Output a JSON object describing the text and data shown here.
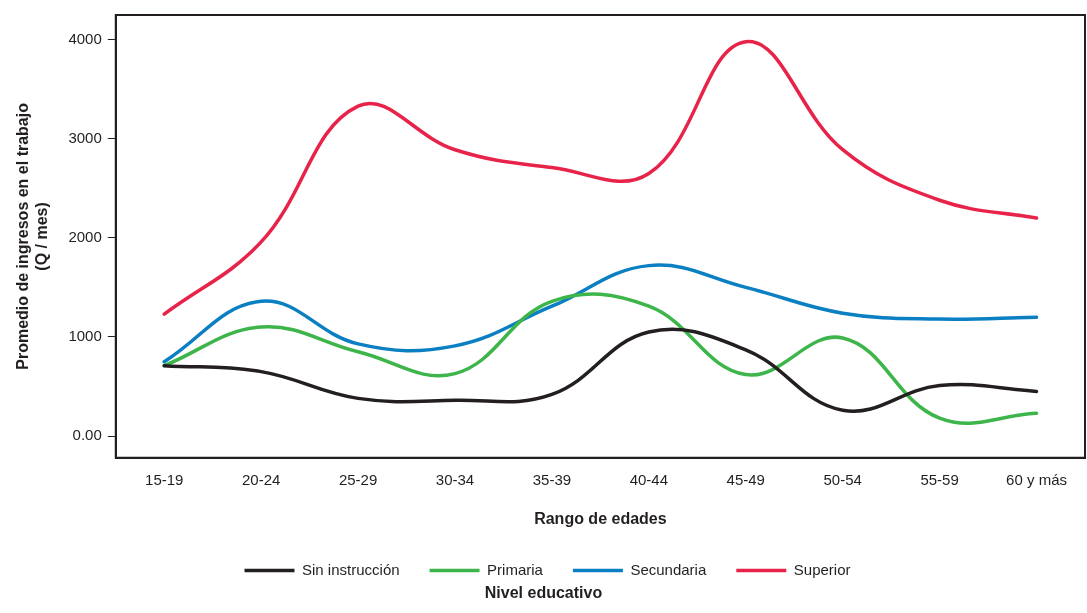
{
  "chart_data": {
    "type": "line",
    "xlabel": "Rango de edades",
    "ylabel": "Promedio de ingresos en el trabajo\n(Q / mes)",
    "legend_title": "Nivel educativo",
    "legend": "bottom",
    "grid": false,
    "marker": "none",
    "line_style": "solid",
    "categories": [
      "15-19",
      "20-24",
      "25-29",
      "30-34",
      "35-39",
      "40-44",
      "45-49",
      "50-54",
      "55-59",
      "60 y más"
    ],
    "ylim": [
      -220,
      4250
    ],
    "yticks": [
      {
        "value": 0,
        "label": "0.00"
      },
      1000,
      2000,
      3000,
      4000
    ],
    "series": [
      {
        "name": "Sin instrucción",
        "color": "#231f20",
        "values": [
          710,
          650,
          380,
          360,
          420,
          1050,
          870,
          260,
          510,
          450
        ]
      },
      {
        "name": "Primaria",
        "color": "#3db54a",
        "values": [
          710,
          1100,
          850,
          630,
          1360,
          1310,
          620,
          990,
          180,
          230
        ]
      },
      {
        "name": "Secundaria",
        "color": "#0a7fc2",
        "values": [
          750,
          1360,
          930,
          910,
          1310,
          1720,
          1500,
          1240,
          1180,
          1200
        ]
      },
      {
        "name": "Superior",
        "color": "#e8234a",
        "values": [
          1230,
          1960,
          3330,
          2890,
          2710,
          2650,
          3980,
          2890,
          2380,
          2200
        ]
      }
    ]
  }
}
